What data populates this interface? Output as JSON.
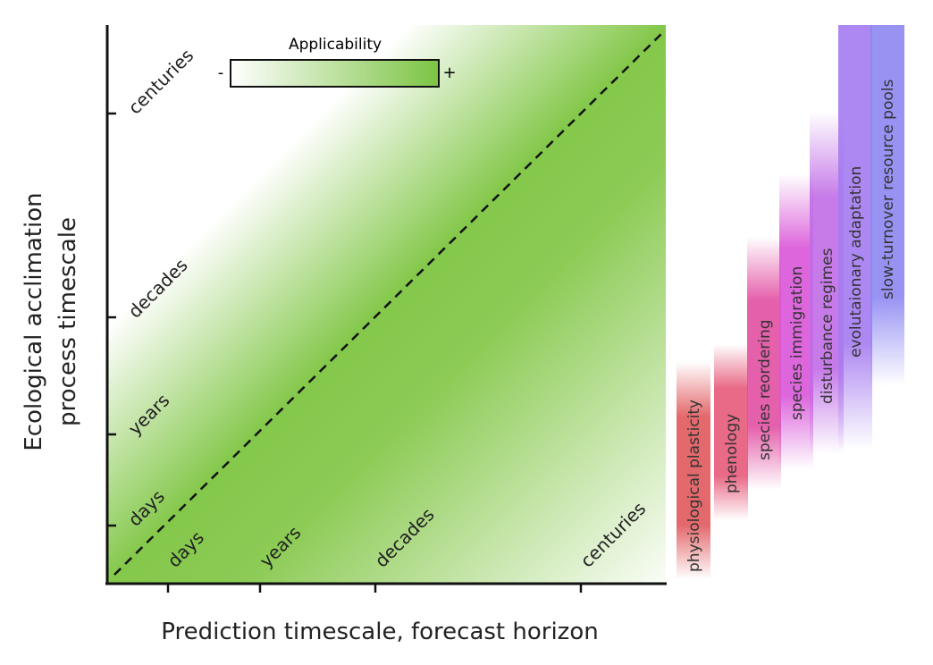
{
  "x_axis": {
    "label": "Prediction timescale, forecast horizon",
    "ticks": [
      "days",
      "years",
      "decades",
      "centuries"
    ]
  },
  "y_axis": {
    "label_lines": [
      "Ecological acclimation",
      "process timescale"
    ],
    "ticks": [
      "days",
      "years",
      "decades",
      "centuries"
    ]
  },
  "legend": {
    "title": "Applicability",
    "low": "-",
    "high": "+"
  },
  "processes": [
    {
      "label": "physiological plasticity",
      "color": "#e0585c"
    },
    {
      "label": "phenology",
      "color": "#e65a7a"
    },
    {
      "label": "species reordering",
      "color": "#e24fa2"
    },
    {
      "label": "species immigration",
      "color": "#d955d8"
    },
    {
      "label": "disturbance regimes",
      "color": "#c06ce6"
    },
    {
      "label": "evolutaionary adaptation",
      "color": "#a57bf0"
    },
    {
      "label": "slow-turnover resource pools",
      "color": "#8c86f2"
    }
  ]
}
